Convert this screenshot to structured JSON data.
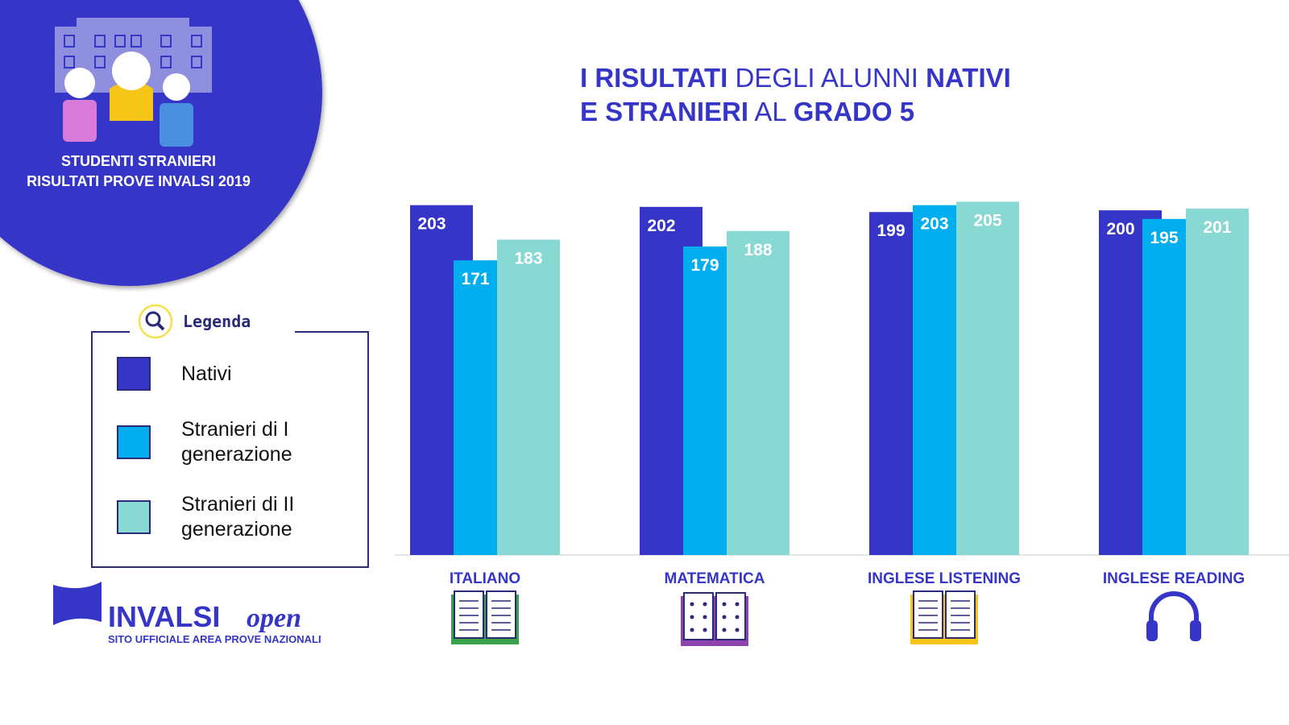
{
  "chart_data": {
    "type": "bar",
    "title": [
      [
        {
          "text": "I RISULTATI",
          "bold": true
        },
        {
          "text": "DEGLI ALUNNI",
          "bold": false
        },
        {
          "text": "NATIVI",
          "bold": true
        }
      ],
      [
        {
          "text": "E STRANIERI",
          "bold": true
        },
        {
          "text": "AL",
          "bold": false
        },
        {
          "text": "GRADO 5",
          "bold": true
        }
      ]
    ],
    "categories": [
      "ITALIANO",
      "MATEMATICA",
      "INGLESE LISTENING",
      "INGLESE READING"
    ],
    "series": [
      {
        "name": "Nativi",
        "color": "#3535c8",
        "values": [
          203,
          202,
          199,
          200
        ]
      },
      {
        "name": "Stranieri di I generazione",
        "color": "#00aeef",
        "values": [
          171,
          179,
          203,
          195
        ]
      },
      {
        "name": "Stranieri di II generazione",
        "color": "#88d8d4",
        "values": [
          183,
          188,
          205,
          201
        ]
      }
    ],
    "ylim": [
      0,
      215
    ],
    "legend_title": "Legenda"
  },
  "badge": {
    "lines": [
      "STUDENTI STRANIERI",
      "RISULTATI PROVE INVALSI 2019"
    ]
  },
  "logo": {
    "name": "INVALSI",
    "suffix": "open",
    "tagline": "SITO UFFICIALE AREA PROVE NAZIONALI"
  }
}
